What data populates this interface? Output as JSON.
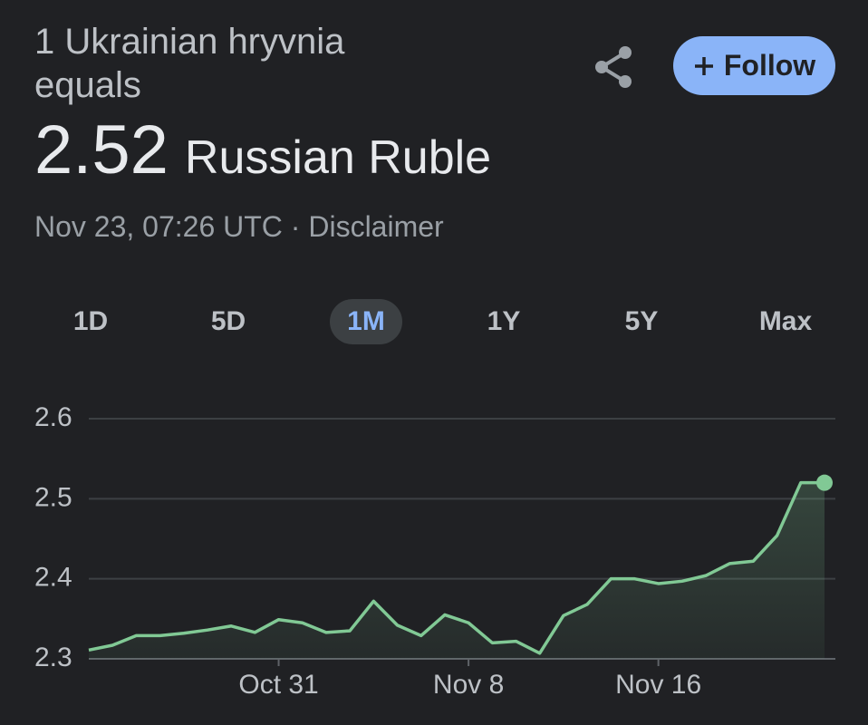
{
  "header": {
    "title": "1 Ukrainian hryvnia equals",
    "value": "2.52",
    "unit": "Russian Ruble",
    "timestamp": "Nov 23, 07:26 UTC",
    "separator": "·",
    "disclaimer": "Disclaimer",
    "follow": "Follow"
  },
  "tabs": {
    "items": [
      "1D",
      "5D",
      "1M",
      "1Y",
      "5Y",
      "Max"
    ],
    "selected": 2
  },
  "chart_data": {
    "type": "area",
    "categories": [
      null,
      null,
      null,
      null,
      null,
      null,
      null,
      null,
      "Oct 31",
      null,
      null,
      null,
      null,
      null,
      null,
      null,
      "Nov 8",
      null,
      null,
      null,
      null,
      null,
      null,
      null,
      "Nov 16",
      null,
      null,
      null,
      null,
      null,
      null,
      null
    ],
    "values": [
      2.311,
      2.317,
      2.329,
      2.329,
      2.332,
      2.336,
      2.341,
      2.333,
      2.349,
      2.345,
      2.333,
      2.335,
      2.372,
      2.342,
      2.329,
      2.355,
      2.345,
      2.32,
      2.322,
      2.307,
      2.354,
      2.368,
      2.4,
      2.4,
      2.394,
      2.397,
      2.404,
      2.419,
      2.422,
      2.454,
      2.52,
      2.52
    ],
    "color": "#81c995",
    "ylim": [
      2.3,
      2.6
    ],
    "yticks": [
      2.3,
      2.4,
      2.5,
      2.6
    ],
    "grid": true
  }
}
